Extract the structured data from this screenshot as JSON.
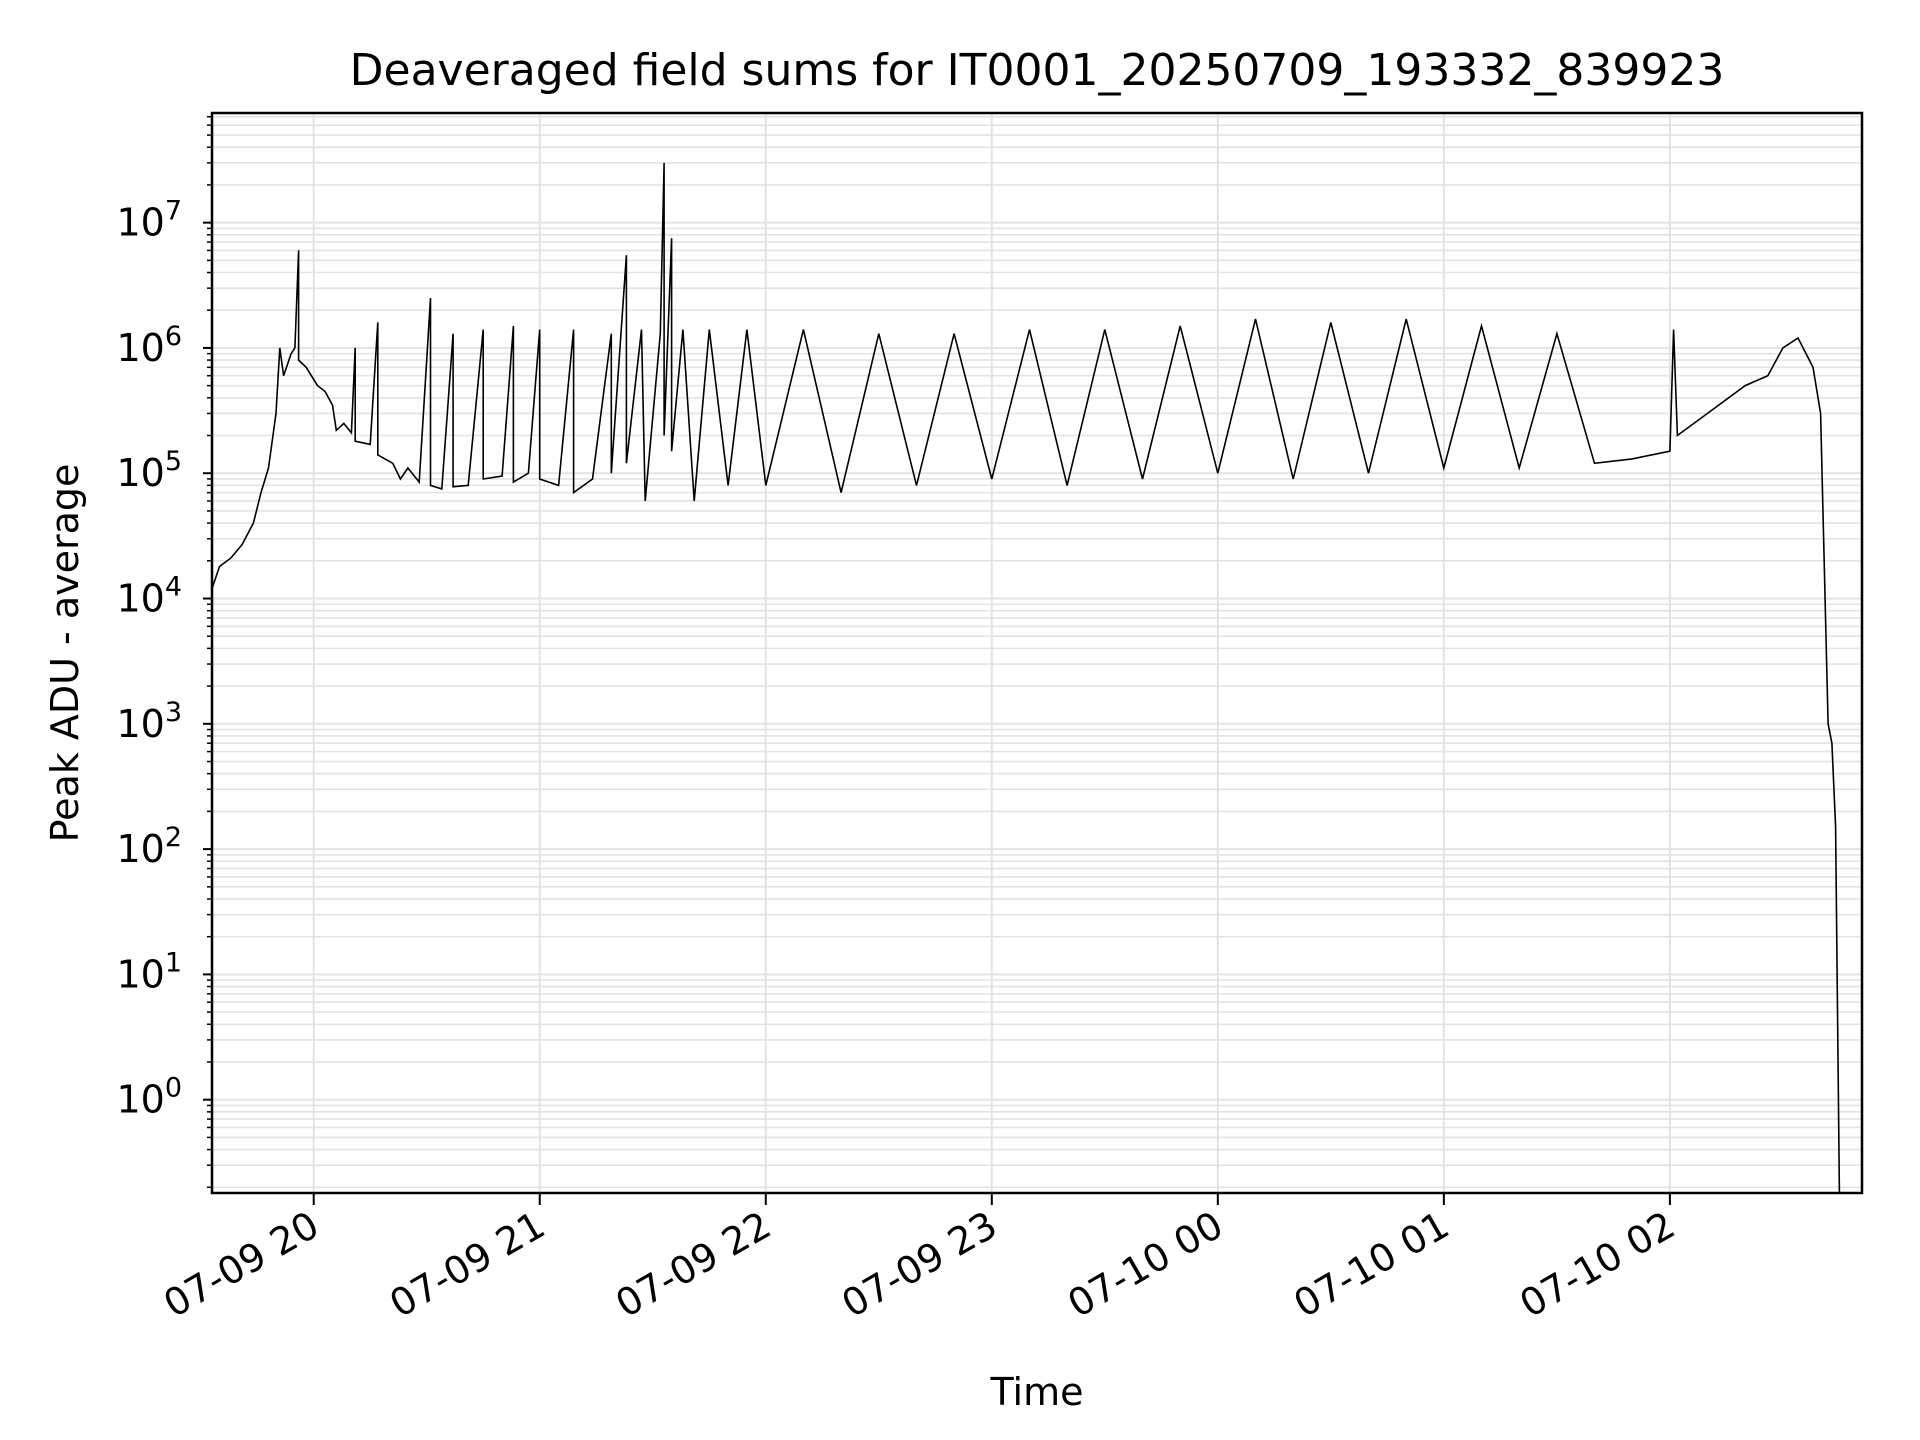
{
  "chart_data": {
    "type": "line",
    "title": "Deaveraged field sums for IT0001_20250709_193332_839923",
    "xlabel": "Time",
    "ylabel": "Peak ADU - average",
    "yscale": "log",
    "ylim": [
      0.18,
      75000000
    ],
    "xlim": [
      "2025-07-09 19:33",
      "2025-07-10 02:51"
    ],
    "grid": true,
    "x_ticks": [
      {
        "value": "2025-07-09 20:00",
        "label": "07-09 20"
      },
      {
        "value": "2025-07-09 21:00",
        "label": "07-09 21"
      },
      {
        "value": "2025-07-09 22:00",
        "label": "07-09 22"
      },
      {
        "value": "2025-07-09 23:00",
        "label": "07-09 23"
      },
      {
        "value": "2025-07-10 00:00",
        "label": "07-10 00"
      },
      {
        "value": "2025-07-10 01:00",
        "label": "07-10 01"
      },
      {
        "value": "2025-07-10 02:00",
        "label": "07-10 02"
      }
    ],
    "y_ticks": [
      {
        "value": 1,
        "base": "10",
        "exp": "0"
      },
      {
        "value": 10,
        "base": "10",
        "exp": "1"
      },
      {
        "value": 100,
        "base": "10",
        "exp": "2"
      },
      {
        "value": 1000,
        "base": "10",
        "exp": "3"
      },
      {
        "value": 10000,
        "base": "10",
        "exp": "4"
      },
      {
        "value": 100000,
        "base": "10",
        "exp": "5"
      },
      {
        "value": 1000000,
        "base": "10",
        "exp": "6"
      },
      {
        "value": 10000000,
        "base": "10",
        "exp": "7"
      }
    ],
    "series": [
      {
        "color": "#000000",
        "points": [
          [
            "2025-07-09 19:33",
            12000
          ],
          [
            "2025-07-09 19:35",
            18000
          ],
          [
            "2025-07-09 19:38",
            21000
          ],
          [
            "2025-07-09 19:41",
            27000
          ],
          [
            "2025-07-09 19:44",
            40000
          ],
          [
            "2025-07-09 19:46",
            70000
          ],
          [
            "2025-07-09 19:48",
            110000
          ],
          [
            "2025-07-09 19:50",
            300000
          ],
          [
            "2025-07-09 19:51",
            1000000
          ],
          [
            "2025-07-09 19:52",
            600000
          ],
          [
            "2025-07-09 19:54",
            900000
          ],
          [
            "2025-07-09 19:55",
            1000000
          ],
          [
            "2025-07-09 19:56",
            6000000
          ],
          [
            "2025-07-09 19:56",
            800000
          ],
          [
            "2025-07-09 19:58",
            700000
          ],
          [
            "2025-07-09 20:01",
            500000
          ],
          [
            "2025-07-09 20:03",
            450000
          ],
          [
            "2025-07-09 20:05",
            350000
          ],
          [
            "2025-07-09 20:06",
            220000
          ],
          [
            "2025-07-09 20:08",
            250000
          ],
          [
            "2025-07-09 20:10",
            210000
          ],
          [
            "2025-07-09 20:11",
            1000000
          ],
          [
            "2025-07-09 20:11",
            180000
          ],
          [
            "2025-07-09 20:15",
            170000
          ],
          [
            "2025-07-09 20:17",
            1600000
          ],
          [
            "2025-07-09 20:17",
            140000
          ],
          [
            "2025-07-09 20:21",
            120000
          ],
          [
            "2025-07-09 20:23",
            90000
          ],
          [
            "2025-07-09 20:25",
            110000
          ],
          [
            "2025-07-09 20:28",
            85000
          ],
          [
            "2025-07-09 20:31",
            2500000
          ],
          [
            "2025-07-09 20:31",
            80000
          ],
          [
            "2025-07-09 20:34",
            75000
          ],
          [
            "2025-07-09 20:37",
            1300000
          ],
          [
            "2025-07-09 20:37",
            78000
          ],
          [
            "2025-07-09 20:41",
            80000
          ],
          [
            "2025-07-09 20:45",
            1400000
          ],
          [
            "2025-07-09 20:45",
            90000
          ],
          [
            "2025-07-09 20:50",
            95000
          ],
          [
            "2025-07-09 20:53",
            1500000
          ],
          [
            "2025-07-09 20:53",
            85000
          ],
          [
            "2025-07-09 20:57",
            100000
          ],
          [
            "2025-07-09 21:00",
            1400000
          ],
          [
            "2025-07-09 21:00",
            90000
          ],
          [
            "2025-07-09 21:05",
            80000
          ],
          [
            "2025-07-09 21:09",
            1400000
          ],
          [
            "2025-07-09 21:09",
            70000
          ],
          [
            "2025-07-09 21:14",
            90000
          ],
          [
            "2025-07-09 21:19",
            1300000
          ],
          [
            "2025-07-09 21:19",
            100000
          ],
          [
            "2025-07-09 21:23",
            5500000
          ],
          [
            "2025-07-09 21:23",
            120000
          ],
          [
            "2025-07-09 21:27",
            1400000
          ],
          [
            "2025-07-09 21:28",
            60000
          ],
          [
            "2025-07-09 21:32",
            1300000
          ],
          [
            "2025-07-09 21:33",
            30000000
          ],
          [
            "2025-07-09 21:33",
            200000
          ],
          [
            "2025-07-09 21:35",
            7500000
          ],
          [
            "2025-07-09 21:35",
            150000
          ],
          [
            "2025-07-09 21:38",
            1400000
          ],
          [
            "2025-07-09 21:41",
            60000
          ],
          [
            "2025-07-09 21:45",
            1400000
          ],
          [
            "2025-07-09 21:50",
            80000
          ],
          [
            "2025-07-09 21:55",
            1400000
          ],
          [
            "2025-07-09 22:00",
            80000
          ],
          [
            "2025-07-09 22:10",
            1400000
          ],
          [
            "2025-07-09 22:20",
            70000
          ],
          [
            "2025-07-09 22:30",
            1300000
          ],
          [
            "2025-07-09 22:40",
            80000
          ],
          [
            "2025-07-09 22:50",
            1300000
          ],
          [
            "2025-07-09 23:00",
            90000
          ],
          [
            "2025-07-09 23:10",
            1400000
          ],
          [
            "2025-07-09 23:20",
            80000
          ],
          [
            "2025-07-09 23:30",
            1400000
          ],
          [
            "2025-07-09 23:40",
            90000
          ],
          [
            "2025-07-09 23:50",
            1500000
          ],
          [
            "2025-07-10 00:00",
            100000
          ],
          [
            "2025-07-10 00:10",
            1700000
          ],
          [
            "2025-07-10 00:20",
            90000
          ],
          [
            "2025-07-10 00:30",
            1600000
          ],
          [
            "2025-07-10 00:40",
            100000
          ],
          [
            "2025-07-10 00:50",
            1700000
          ],
          [
            "2025-07-10 01:00",
            110000
          ],
          [
            "2025-07-10 01:10",
            1500000
          ],
          [
            "2025-07-10 01:20",
            110000
          ],
          [
            "2025-07-10 01:30",
            1300000
          ],
          [
            "2025-07-10 01:40",
            120000
          ],
          [
            "2025-07-10 01:50",
            130000
          ],
          [
            "2025-07-10 02:00",
            150000
          ],
          [
            "2025-07-10 02:01",
            1400000
          ],
          [
            "2025-07-10 02:02",
            200000
          ],
          [
            "2025-07-10 02:10",
            300000
          ],
          [
            "2025-07-10 02:20",
            500000
          ],
          [
            "2025-07-10 02:26",
            600000
          ],
          [
            "2025-07-10 02:30",
            1000000
          ],
          [
            "2025-07-10 02:34",
            1200000
          ],
          [
            "2025-07-10 02:38",
            700000
          ],
          [
            "2025-07-10 02:40",
            300000
          ],
          [
            "2025-07-10 02:42",
            1000
          ],
          [
            "2025-07-10 02:43",
            700
          ],
          [
            "2025-07-10 02:44",
            150
          ],
          [
            "2025-07-10 02:45",
            0.18
          ]
        ]
      }
    ]
  }
}
